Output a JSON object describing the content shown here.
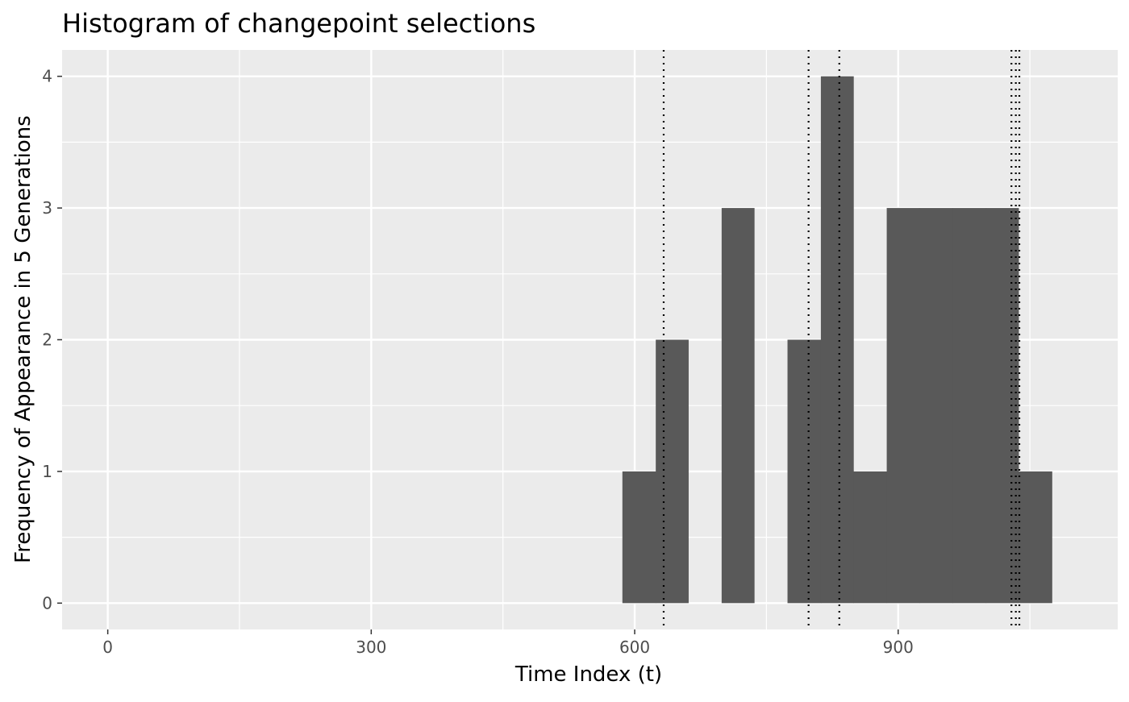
{
  "chart_data": {
    "type": "bar",
    "subtype": "histogram",
    "title": "Histogram of changepoint selections",
    "xlabel": "Time Index (t)",
    "ylabel": "Frequency of Appearance in 5 Generations",
    "xlim": [
      -52,
      1150
    ],
    "ylim": [
      -0.2,
      4.2
    ],
    "x_ticks": [
      0,
      300,
      600,
      900
    ],
    "y_ticks": [
      0,
      1,
      2,
      3,
      4
    ],
    "bin_width": 37.6,
    "bins": [
      {
        "start": 586,
        "end": 624,
        "count": 1
      },
      {
        "start": 624,
        "end": 661,
        "count": 2
      },
      {
        "start": 661,
        "end": 699,
        "count": 0
      },
      {
        "start": 699,
        "end": 736,
        "count": 3
      },
      {
        "start": 736,
        "end": 774,
        "count": 0
      },
      {
        "start": 774,
        "end": 812,
        "count": 2
      },
      {
        "start": 812,
        "end": 849,
        "count": 4
      },
      {
        "start": 849,
        "end": 887,
        "count": 1
      },
      {
        "start": 887,
        "end": 924,
        "count": 3
      },
      {
        "start": 924,
        "end": 962,
        "count": 3
      },
      {
        "start": 962,
        "end": 1000,
        "count": 3
      },
      {
        "start": 1000,
        "end": 1037,
        "count": 3
      },
      {
        "start": 1037,
        "end": 1075,
        "count": 1
      }
    ],
    "reference_lines": [
      633,
      798,
      833,
      1029,
      1034,
      1038
    ],
    "grid": true,
    "colors": {
      "panel_background": "#ebebeb",
      "grid": "#ffffff",
      "bar_fill": "#595959",
      "reference_line": "#000000",
      "tick_label": "#4d4d4d"
    }
  }
}
